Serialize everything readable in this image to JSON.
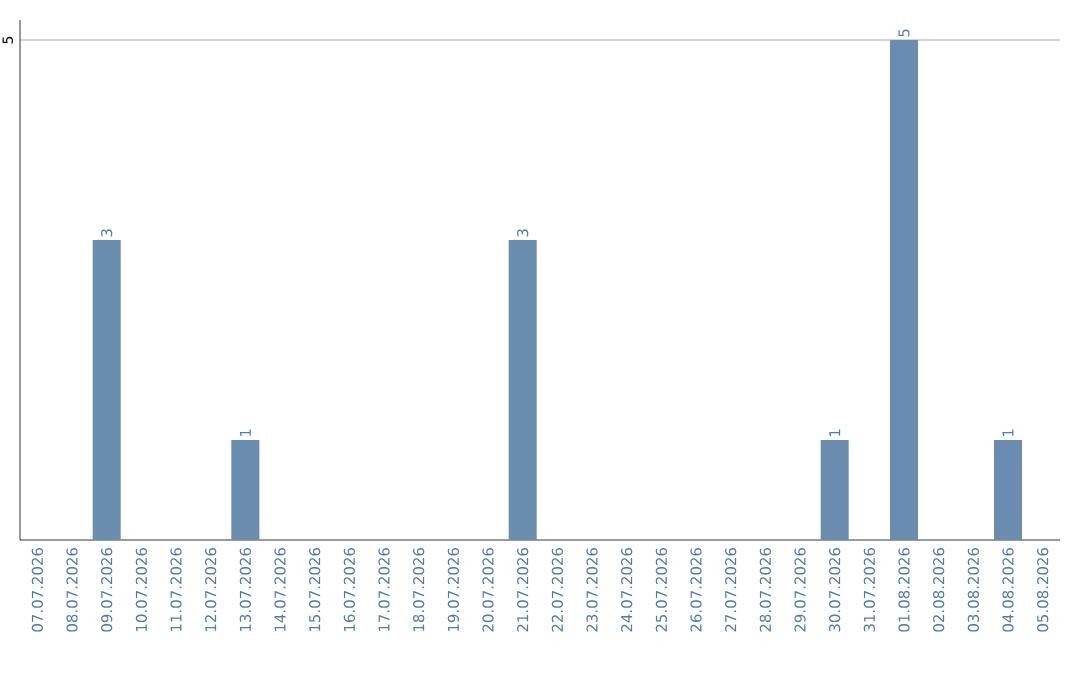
{
  "chart_data": {
    "type": "bar",
    "categories": [
      "07.07.2026",
      "08.07.2026",
      "09.07.2026",
      "10.07.2026",
      "11.07.2026",
      "12.07.2026",
      "13.07.2026",
      "14.07.2026",
      "15.07.2026",
      "16.07.2026",
      "17.07.2026",
      "18.07.2026",
      "19.07.2026",
      "20.07.2026",
      "21.07.2026",
      "22.07.2026",
      "23.07.2026",
      "24.07.2026",
      "25.07.2026",
      "26.07.2026",
      "27.07.2026",
      "28.07.2026",
      "29.07.2026",
      "30.07.2026",
      "31.07.2026",
      "01.08.2026",
      "02.08.2026",
      "03.08.2026",
      "04.08.2026",
      "05.08.2026"
    ],
    "values": [
      0,
      0,
      3,
      0,
      0,
      0,
      1,
      0,
      0,
      0,
      0,
      0,
      0,
      0,
      3,
      0,
      0,
      0,
      0,
      0,
      0,
      0,
      0,
      1,
      0,
      5,
      0,
      0,
      1,
      0
    ],
    "value_labels": [
      null,
      null,
      "3",
      null,
      null,
      null,
      "1",
      null,
      null,
      null,
      null,
      null,
      null,
      null,
      "3",
      null,
      null,
      null,
      null,
      null,
      null,
      null,
      null,
      "1",
      null,
      "5",
      null,
      null,
      "1",
      null
    ],
    "color": "#6a8caf",
    "ylim": [
      0,
      5.2
    ],
    "yticks": [
      5
    ],
    "grid": "y"
  }
}
